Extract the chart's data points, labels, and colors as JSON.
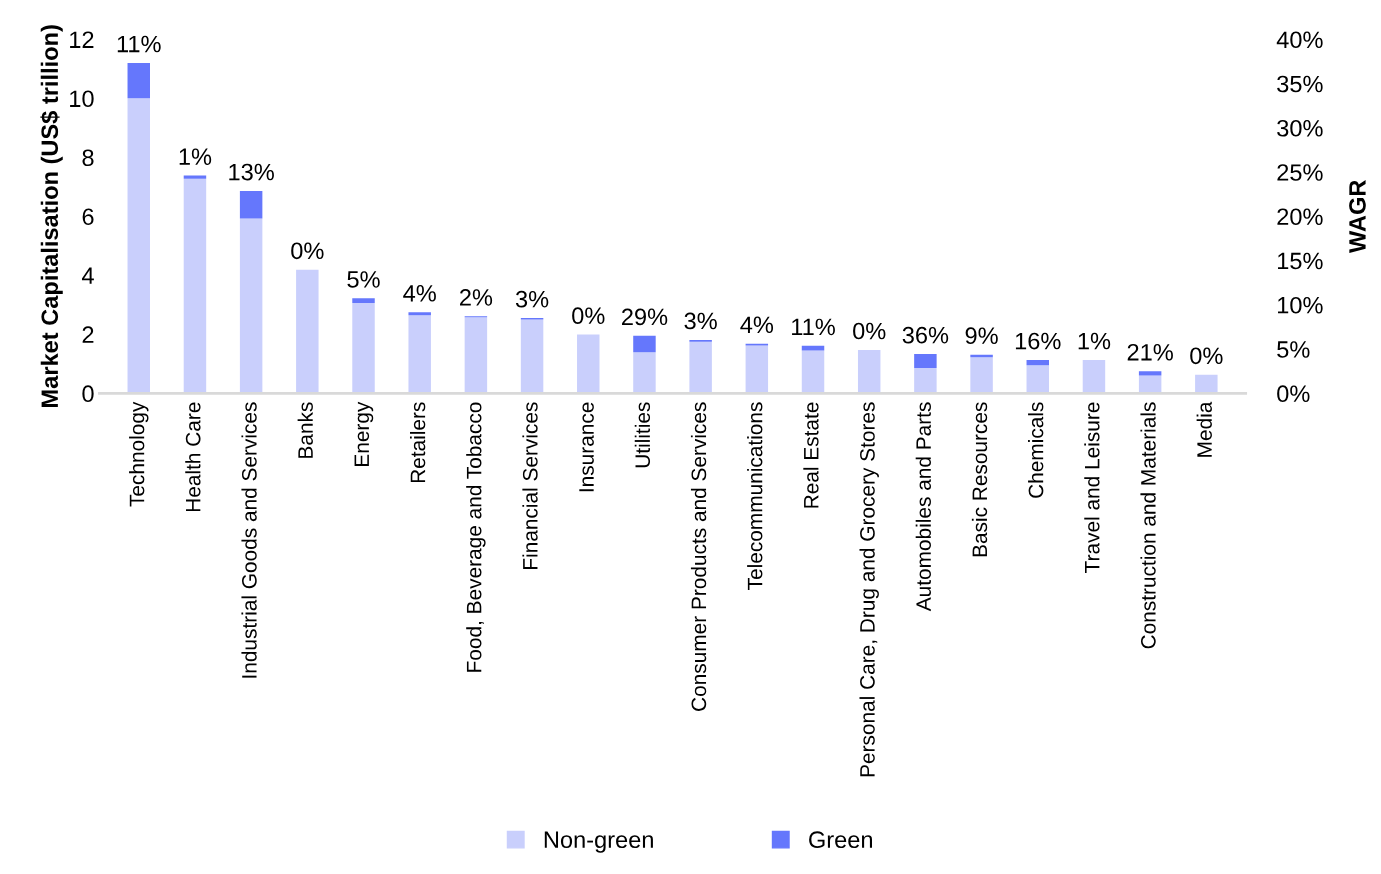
{
  "chart_data": {
    "type": "bar",
    "stacked": true,
    "ylabel": "Market Capitalisation (US$ trillion)",
    "y2label": "WAGR",
    "categories": [
      "Technology",
      "Health Care",
      "Industrial Goods and Services",
      "Banks",
      "Energy",
      "Retailers",
      "Food, Beverage and Tobacco",
      "Financial Services",
      "Insurance",
      "Utilities",
      "Consumer Products and Services",
      "Telecommunications",
      "Real Estate",
      "Personal Care, Drug and Grocery Stores",
      "Automobiles and Parts",
      "Basic Resources",
      "Chemicals",
      "Travel and Leisure",
      "Construction and Materials",
      "Media"
    ],
    "series": [
      {
        "name": "Non-green",
        "color": "#c9cffc",
        "values": [
          10.0,
          7.27,
          5.93,
          4.19,
          3.06,
          2.65,
          2.58,
          2.5,
          1.99,
          1.39,
          1.75,
          1.62,
          1.45,
          1.47,
          0.86,
          1.22,
          0.95,
          1.13,
          0.6,
          0.63
        ]
      },
      {
        "name": "Green",
        "color": "#6577fc",
        "values": [
          1.2,
          0.11,
          0.93,
          0,
          0.16,
          0.1,
          0.03,
          0.05,
          0,
          0.56,
          0.06,
          0.06,
          0.16,
          0,
          0.47,
          0.09,
          0.18,
          0,
          0.15,
          0
        ]
      }
    ],
    "annotations": [
      {
        "text": "11%",
        "x": "Technology",
        "y": 11.2
      },
      {
        "text": "1%",
        "x": "Health Care",
        "y": 7.38
      },
      {
        "text": "13%",
        "x": "Industrial Goods and Services",
        "y": 6.86
      },
      {
        "text": "0%",
        "x": "Banks",
        "y": 4.19
      },
      {
        "text": "5%",
        "x": "Energy",
        "y": 3.22
      },
      {
        "text": "4%",
        "x": "Retailers",
        "y": 2.75
      },
      {
        "text": "2%",
        "x": "Food, Beverage and Tobacco",
        "y": 2.61
      },
      {
        "text": "3%",
        "x": "Financial Services",
        "y": 2.55
      },
      {
        "text": "0%",
        "x": "Insurance",
        "y": 1.99
      },
      {
        "text": "29%",
        "x": "Utilities",
        "y": 1.95
      },
      {
        "text": "3%",
        "x": "Consumer Products and Services",
        "y": 1.81
      },
      {
        "text": "4%",
        "x": "Telecommunications",
        "y": 1.68
      },
      {
        "text": "11%",
        "x": "Real Estate",
        "y": 1.61
      },
      {
        "text": "0%",
        "x": "Personal Care, Drug and Grocery Stores",
        "y": 1.47
      },
      {
        "text": "36%",
        "x": "Automobiles and Parts",
        "y": 1.33
      },
      {
        "text": "9%",
        "x": "Basic Resources",
        "y": 1.31
      },
      {
        "text": "16%",
        "x": "Chemicals",
        "y": 1.13
      },
      {
        "text": "1%",
        "x": "Travel and Leisure",
        "y": 1.13
      },
      {
        "text": "21%",
        "x": "Construction and Materials",
        "y": 0.75
      },
      {
        "text": "0%",
        "x": "Media",
        "y": 0.63
      }
    ],
    "ylim": [
      0,
      12
    ],
    "yticks": [
      0,
      2,
      4,
      6,
      8,
      10,
      12
    ],
    "y2lim": [
      0,
      40
    ],
    "y2ticks": [
      {
        "value": 0,
        "label": "0%"
      },
      {
        "value": 5,
        "label": "5%"
      },
      {
        "value": 10,
        "label": "10%"
      },
      {
        "value": 15,
        "label": "15%"
      },
      {
        "value": 20,
        "label": "20%"
      },
      {
        "value": 25,
        "label": "25%"
      },
      {
        "value": 30,
        "label": "30%"
      },
      {
        "value": 35,
        "label": "35%"
      },
      {
        "value": 40,
        "label": "40%"
      }
    ],
    "legend": "bottom",
    "grid": false
  }
}
